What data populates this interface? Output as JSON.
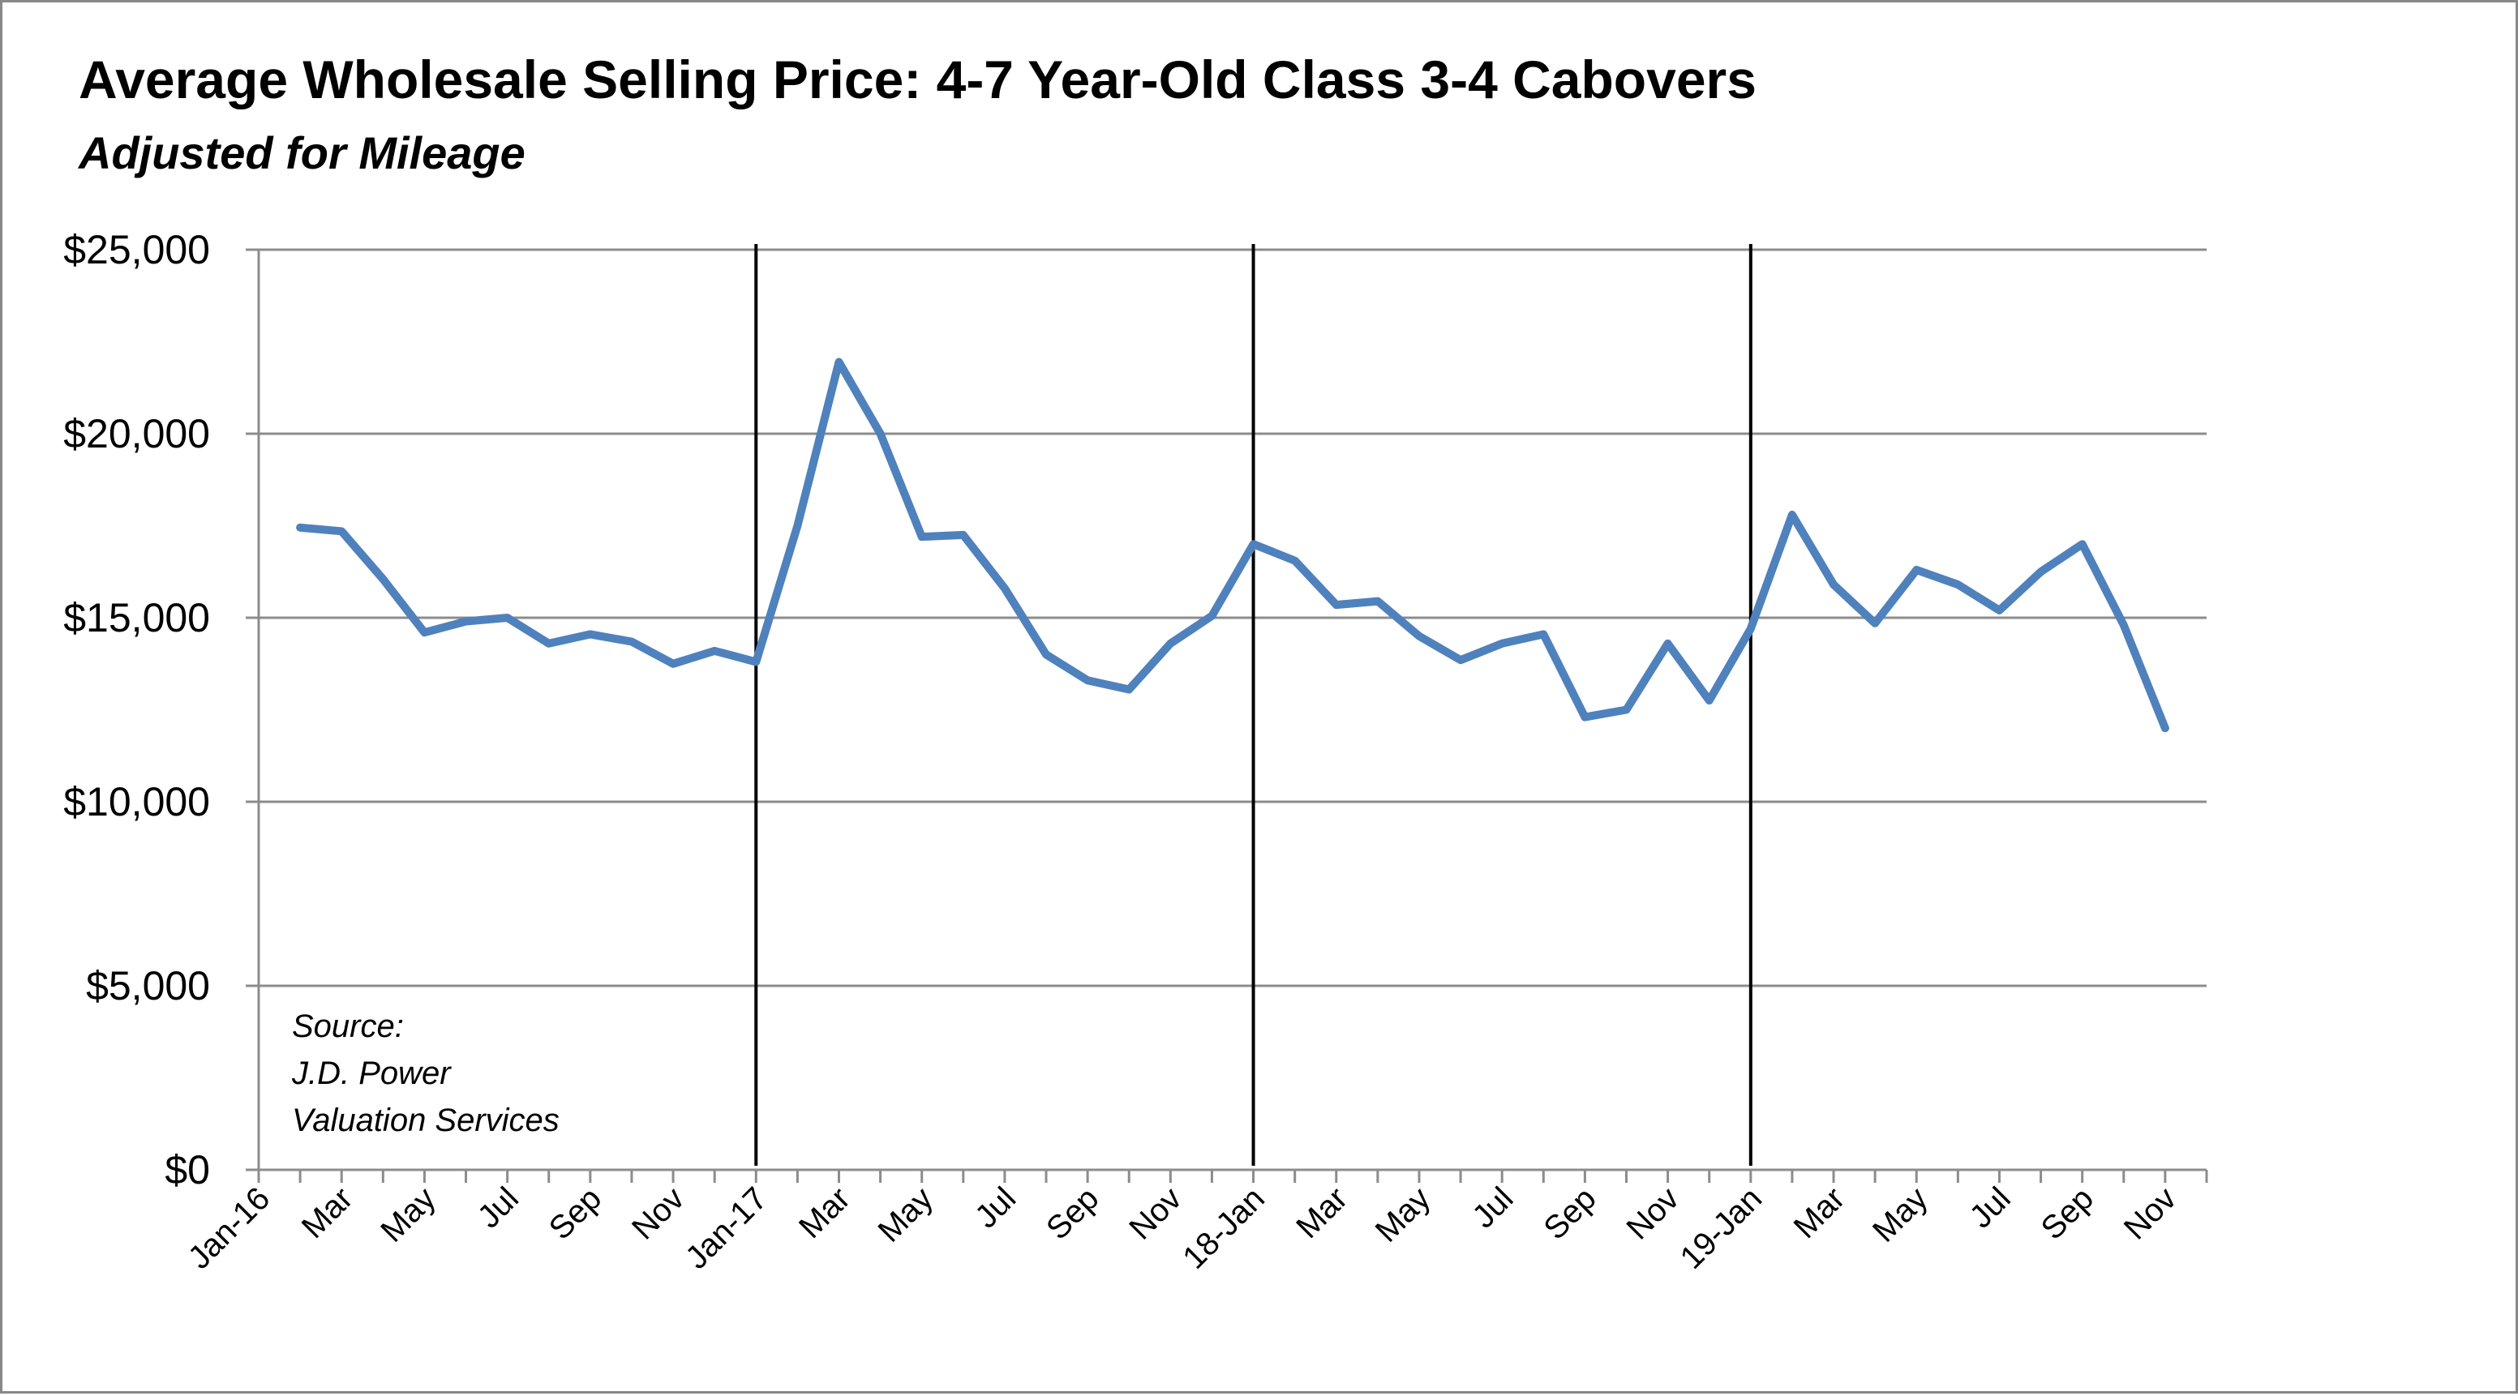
{
  "chart_data": {
    "type": "line",
    "title": "Average Wholesale Selling Price: 4-7 Year-Old Class 3-4 Cabovers",
    "subtitle": "Adjusted for Mileage",
    "ylim": [
      0,
      25000
    ],
    "y_ticks": [
      "$25,000",
      "$20,000",
      "$15,000",
      "$10,000",
      "$5,000",
      "$0"
    ],
    "y_tick_values": [
      25000,
      20000,
      15000,
      10000,
      5000,
      0
    ],
    "x_tick_labels": [
      "Jan-16",
      "Mar",
      "May",
      "Jul",
      "Sep",
      "Nov",
      "Jan-17",
      "Mar",
      "May",
      "Jul",
      "Sep",
      "Nov",
      "18-Jan",
      "Mar",
      "May",
      "Jul",
      "Sep",
      "Nov",
      "19-Jan",
      "Mar",
      "May",
      "Jul",
      "Sep",
      "Nov"
    ],
    "x_tick_months": [
      0,
      2,
      4,
      6,
      8,
      10,
      12,
      14,
      16,
      18,
      20,
      22,
      24,
      26,
      28,
      30,
      32,
      34,
      36,
      38,
      40,
      42,
      44,
      46
    ],
    "year_dividers_month": [
      12,
      24,
      36
    ],
    "grid": true,
    "legend": "none",
    "line_color": "#4F81BD",
    "series": [
      {
        "x": [
          "Feb-16",
          "Mar-16",
          "Apr-16",
          "May-16",
          "Jun-16",
          "Jul-16",
          "Aug-16",
          "Sep-16",
          "Oct-16",
          "Nov-16",
          "Dec-16",
          "Jan-17",
          "Feb-17",
          "Mar-17",
          "Apr-17",
          "May-17",
          "Jun-17",
          "Jul-17",
          "Aug-17",
          "Sep-17",
          "Oct-17",
          "Nov-17",
          "Dec-17",
          "Jan-18",
          "Feb-18",
          "Mar-18",
          "Apr-18",
          "May-18",
          "Jun-18",
          "Jul-18",
          "Aug-18",
          "Sep-18",
          "Oct-18",
          "Nov-18",
          "Dec-18",
          "Jan-19",
          "Feb-19",
          "Mar-19",
          "Apr-19",
          "May-19",
          "Jun-19",
          "Jul-19",
          "Aug-19",
          "Sep-19",
          "Oct-19",
          "Nov-19"
        ],
        "months": [
          1,
          2,
          3,
          4,
          5,
          6,
          7,
          8,
          9,
          10,
          11,
          12,
          13,
          14,
          15,
          16,
          17,
          18,
          19,
          20,
          21,
          22,
          23,
          24,
          25,
          26,
          27,
          28,
          29,
          30,
          31,
          32,
          33,
          34,
          35,
          36,
          37,
          38,
          39,
          40,
          41,
          42,
          43,
          44,
          45,
          46
        ],
        "values": [
          17450,
          17350,
          16050,
          14600,
          14900,
          15000,
          14300,
          14550,
          14350,
          13750,
          14100,
          13800,
          17500,
          21950,
          20000,
          17200,
          17250,
          15800,
          14000,
          13300,
          13050,
          14300,
          15050,
          17000,
          16550,
          15350,
          15450,
          14500,
          13850,
          14300,
          14550,
          12300,
          12500,
          14300,
          12750,
          14700,
          17800,
          15900,
          14850,
          16300,
          15900,
          15200,
          16250,
          17000,
          14800,
          12000
        ]
      }
    ],
    "annotation": [
      "Source:",
      "J.D. Power",
      "Valuation Services"
    ]
  }
}
